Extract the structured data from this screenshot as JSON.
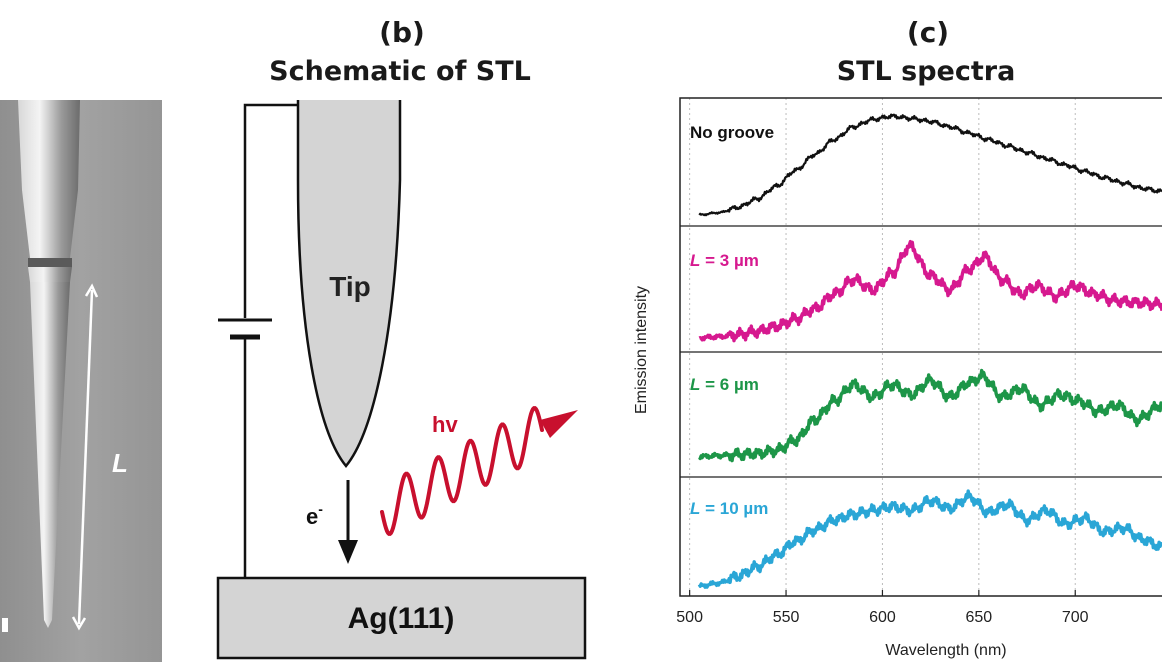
{
  "panel_b": {
    "letter": "(b)",
    "title": "Schematic of STL",
    "tip_label": "Tip",
    "electron_label": "e",
    "electron_sup": "-",
    "photon_label": "hv",
    "substrate_label": "Ag(111)"
  },
  "panel_a": {
    "length_label": "L"
  },
  "panel_c": {
    "letter": "(c)",
    "title": "STL spectra"
  },
  "colors": {
    "no_groove": "#111111",
    "l3": "#d6198f",
    "l6": "#1d9648",
    "l10": "#2aa6d6",
    "photon": "#c8102e"
  },
  "chart_data": {
    "type": "line",
    "title": "STL spectra",
    "xlabel": "Wavelength (nm)",
    "ylabel": "Emission intensity",
    "xlim": [
      495,
      745
    ],
    "xticks": [
      500,
      550,
      600,
      650,
      700
    ],
    "grid": "vertical dotted",
    "series": [
      {
        "name": "No groove",
        "label_parts": [
          "No groove"
        ],
        "color": "#111111",
        "points": [
          [
            505,
            0.03
          ],
          [
            515,
            0.05
          ],
          [
            525,
            0.1
          ],
          [
            535,
            0.18
          ],
          [
            545,
            0.3
          ],
          [
            555,
            0.45
          ],
          [
            565,
            0.6
          ],
          [
            575,
            0.74
          ],
          [
            585,
            0.86
          ],
          [
            595,
            0.93
          ],
          [
            605,
            0.96
          ],
          [
            615,
            0.94
          ],
          [
            625,
            0.91
          ],
          [
            635,
            0.86
          ],
          [
            645,
            0.8
          ],
          [
            655,
            0.74
          ],
          [
            665,
            0.68
          ],
          [
            675,
            0.62
          ],
          [
            685,
            0.56
          ],
          [
            695,
            0.5
          ],
          [
            705,
            0.44
          ],
          [
            715,
            0.38
          ],
          [
            725,
            0.33
          ],
          [
            735,
            0.28
          ],
          [
            745,
            0.25
          ]
        ]
      },
      {
        "name": "L = 3 µm",
        "label_parts": [
          "L",
          " = 3 µm"
        ],
        "color": "#d6198f",
        "points": [
          [
            505,
            0.06
          ],
          [
            515,
            0.07
          ],
          [
            525,
            0.09
          ],
          [
            535,
            0.12
          ],
          [
            545,
            0.17
          ],
          [
            555,
            0.24
          ],
          [
            565,
            0.34
          ],
          [
            575,
            0.48
          ],
          [
            585,
            0.62
          ],
          [
            595,
            0.52
          ],
          [
            605,
            0.68
          ],
          [
            614,
            0.94
          ],
          [
            625,
            0.66
          ],
          [
            635,
            0.52
          ],
          [
            645,
            0.72
          ],
          [
            653,
            0.84
          ],
          [
            662,
            0.62
          ],
          [
            672,
            0.48
          ],
          [
            680,
            0.56
          ],
          [
            690,
            0.46
          ],
          [
            700,
            0.56
          ],
          [
            710,
            0.48
          ],
          [
            720,
            0.42
          ],
          [
            730,
            0.4
          ],
          [
            745,
            0.38
          ]
        ]
      },
      {
        "name": "L = 6 µm",
        "label_parts": [
          "L",
          " = 6 µm"
        ],
        "color": "#1d9648",
        "points": [
          [
            505,
            0.12
          ],
          [
            515,
            0.13
          ],
          [
            525,
            0.14
          ],
          [
            535,
            0.15
          ],
          [
            545,
            0.18
          ],
          [
            555,
            0.28
          ],
          [
            565,
            0.48
          ],
          [
            575,
            0.66
          ],
          [
            585,
            0.82
          ],
          [
            595,
            0.7
          ],
          [
            605,
            0.82
          ],
          [
            615,
            0.72
          ],
          [
            625,
            0.86
          ],
          [
            635,
            0.7
          ],
          [
            645,
            0.84
          ],
          [
            652,
            0.9
          ],
          [
            662,
            0.7
          ],
          [
            672,
            0.78
          ],
          [
            682,
            0.62
          ],
          [
            692,
            0.72
          ],
          [
            702,
            0.66
          ],
          [
            712,
            0.56
          ],
          [
            722,
            0.62
          ],
          [
            732,
            0.48
          ],
          [
            745,
            0.62
          ]
        ]
      },
      {
        "name": "L = 10 µm",
        "label_parts": [
          "L",
          " = 10 µm"
        ],
        "color": "#2aa6d6",
        "points": [
          [
            505,
            0.02
          ],
          [
            515,
            0.05
          ],
          [
            525,
            0.12
          ],
          [
            535,
            0.22
          ],
          [
            545,
            0.34
          ],
          [
            555,
            0.48
          ],
          [
            565,
            0.6
          ],
          [
            575,
            0.7
          ],
          [
            585,
            0.76
          ],
          [
            595,
            0.8
          ],
          [
            605,
            0.84
          ],
          [
            615,
            0.8
          ],
          [
            625,
            0.9
          ],
          [
            635,
            0.82
          ],
          [
            645,
            0.94
          ],
          [
            655,
            0.78
          ],
          [
            665,
            0.86
          ],
          [
            675,
            0.7
          ],
          [
            685,
            0.8
          ],
          [
            695,
            0.66
          ],
          [
            705,
            0.72
          ],
          [
            715,
            0.58
          ],
          [
            725,
            0.62
          ],
          [
            735,
            0.5
          ],
          [
            745,
            0.42
          ]
        ]
      }
    ]
  }
}
